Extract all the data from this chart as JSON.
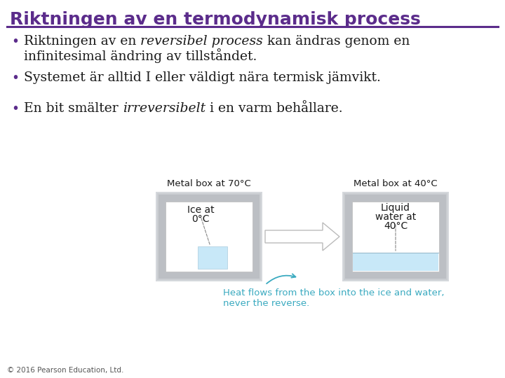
{
  "title": "Riktningen av en termodynamisk process",
  "title_color": "#5B2C8B",
  "title_underline_color": "#5B2C8B",
  "bg_color": "#FFFFFF",
  "bullet_color": "#5B2C8B",
  "text_color": "#1a1a1a",
  "caption_color": "#3AAAC0",
  "ice_color": "#C8E8F8",
  "water_color": "#C8E8F8",
  "footer": "© 2016 Pearson Education, Ltd.",
  "box_left_label": "Metal box at 70°C",
  "box_right_label": "Metal box at 40°C",
  "ice_label_line1": "Ice at",
  "ice_label_line2": "0°C",
  "water_label_line1": "Liquid",
  "water_label_line2": "water at",
  "water_label_line3": "40°C",
  "caption_line1": "Heat flows from the box into the ice and water,",
  "caption_line2": "never the reverse.",
  "b1_pre": "Riktningen av en ",
  "b1_italic": "reversibel process",
  "b1_post": " kan ändras genom en",
  "b1_line2": "infinitesimal ändring av tillståndet.",
  "b2": "Systemet är alltid I eller väldigt nära termisk jämvikt.",
  "b3_pre": "En bit smälter ",
  "b3_italic": "irreversibelt",
  "b3_post": " i en varm behållare."
}
